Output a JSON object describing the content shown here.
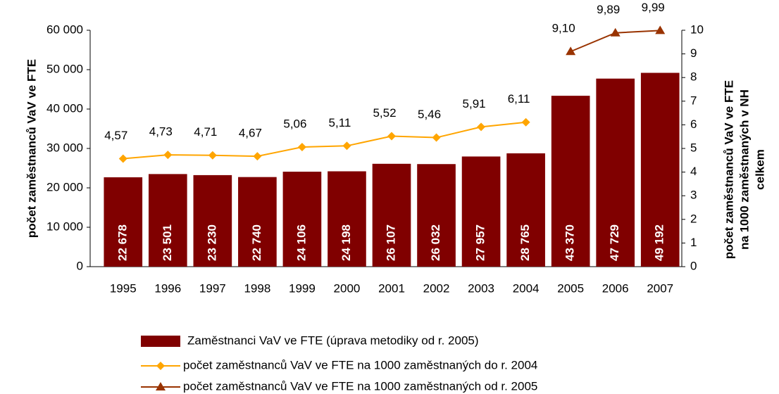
{
  "chart_data": {
    "type": "bar-line",
    "categories": [
      "1995",
      "1996",
      "1997",
      "1998",
      "1999",
      "2000",
      "2001",
      "2002",
      "2003",
      "2004",
      "2005",
      "2006",
      "2007"
    ],
    "ylabel": "počet zaměstnanců VaV ve FTE",
    "y2label": [
      "počet zaměstnanců VaV ve FTE",
      "na 1000 zaměstnaných v NH",
      "celkem"
    ],
    "ylim": [
      0,
      60000
    ],
    "yticks": [
      0,
      {
        "value": 10000,
        "label": "10 000"
      },
      {
        "value": 20000,
        "label": "20 000"
      },
      {
        "value": 30000,
        "label": "30 000"
      },
      {
        "value": 40000,
        "label": "40 000"
      },
      {
        "value": 50000,
        "label": "50 000"
      },
      {
        "value": 60000,
        "label": "60 000"
      }
    ],
    "y2lim": [
      0,
      10
    ],
    "y2ticks": [
      0,
      1,
      2,
      3,
      4,
      5,
      6,
      7,
      8,
      9,
      10
    ],
    "series": [
      {
        "name": "Zaměstnanci VaV ve FTE (úprava metodiky od r. 2005)",
        "type": "bar",
        "color": "#800000",
        "values": [
          22678,
          23501,
          23230,
          22740,
          24106,
          24198,
          26107,
          26032,
          27957,
          28765,
          43370,
          47729,
          49192
        ],
        "value_labels": [
          "22 678",
          "23 501",
          "23 230",
          "22 740",
          "24 106",
          "24 198",
          "26 107",
          "26 032",
          "27 957",
          "28 765",
          "43 370",
          "47 729",
          "49 192"
        ]
      },
      {
        "name": "počet zaměstnanců VaV ve FTE na 1000 zaměstnaných do r. 2004",
        "type": "line",
        "marker": "diamond",
        "axis": "y2",
        "color": "#ffa500",
        "values": [
          4.57,
          4.73,
          4.71,
          4.67,
          5.06,
          5.11,
          5.52,
          5.46,
          5.91,
          6.11,
          null,
          null,
          null
        ],
        "value_labels": [
          "4,57",
          "4,73",
          "4,71",
          "4,67",
          "5,06",
          "5,11",
          "5,52",
          "5,46",
          "5,91",
          "6,11",
          null,
          null,
          null
        ]
      },
      {
        "name": "počet zaměstnanců VaV ve FTE na 1000 zaměstnaných od r. 2005",
        "type": "line",
        "marker": "triangle",
        "axis": "y2",
        "color": "#993300",
        "values": [
          null,
          null,
          null,
          null,
          null,
          null,
          null,
          null,
          null,
          null,
          9.1,
          9.89,
          9.99
        ],
        "value_labels": [
          null,
          null,
          null,
          null,
          null,
          null,
          null,
          null,
          null,
          null,
          "9,10",
          "9,89",
          "9,99"
        ]
      }
    ]
  }
}
